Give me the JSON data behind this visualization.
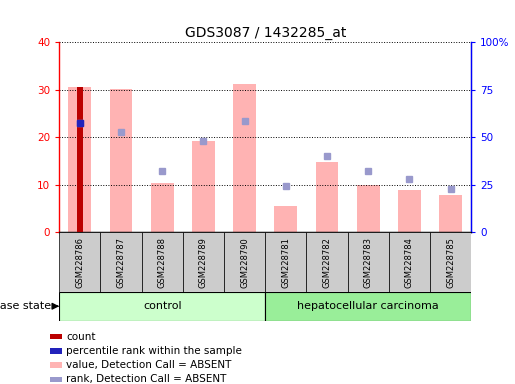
{
  "title": "GDS3087 / 1432285_at",
  "samples": [
    "GSM228786",
    "GSM228787",
    "GSM228788",
    "GSM228789",
    "GSM228790",
    "GSM228781",
    "GSM228782",
    "GSM228783",
    "GSM228784",
    "GSM228785"
  ],
  "bar_values": [
    30.5,
    30.2,
    10.3,
    19.2,
    31.2,
    5.5,
    14.8,
    10.0,
    9.0,
    7.8
  ],
  "rank_markers": [
    23.0,
    21.2,
    13.0,
    19.3,
    23.5,
    9.8,
    16.0,
    13.0,
    11.3,
    9.2
  ],
  "count_value": 30.5,
  "count_rank": 23.0,
  "ylim": [
    0,
    40
  ],
  "y2lim": [
    0,
    100
  ],
  "yticks": [
    0,
    10,
    20,
    30,
    40
  ],
  "ytick_labels": [
    "0",
    "10",
    "20",
    "30",
    "40"
  ],
  "y2ticks": [
    0,
    25,
    50,
    75,
    100
  ],
  "y2tick_labels": [
    "0",
    "25",
    "50",
    "75",
    "100%"
  ],
  "ctrl_count": 5,
  "dis_count": 5,
  "control_label": "control",
  "disease_label": "hepatocellular carcinoma",
  "disease_state_label": "disease state",
  "bar_color_pink": "#FFB3B3",
  "bar_color_red": "#BB0000",
  "marker_color_blue": "#2222BB",
  "marker_color_lightblue": "#9999CC",
  "control_bg": "#CCFFCC",
  "disease_bg": "#99EE99",
  "sample_bg": "#CCCCCC",
  "legend_labels": [
    "count",
    "percentile rank within the sample",
    "value, Detection Call = ABSENT",
    "rank, Detection Call = ABSENT"
  ],
  "legend_colors": [
    "#BB0000",
    "#2222BB",
    "#FFB3B3",
    "#9999CC"
  ]
}
